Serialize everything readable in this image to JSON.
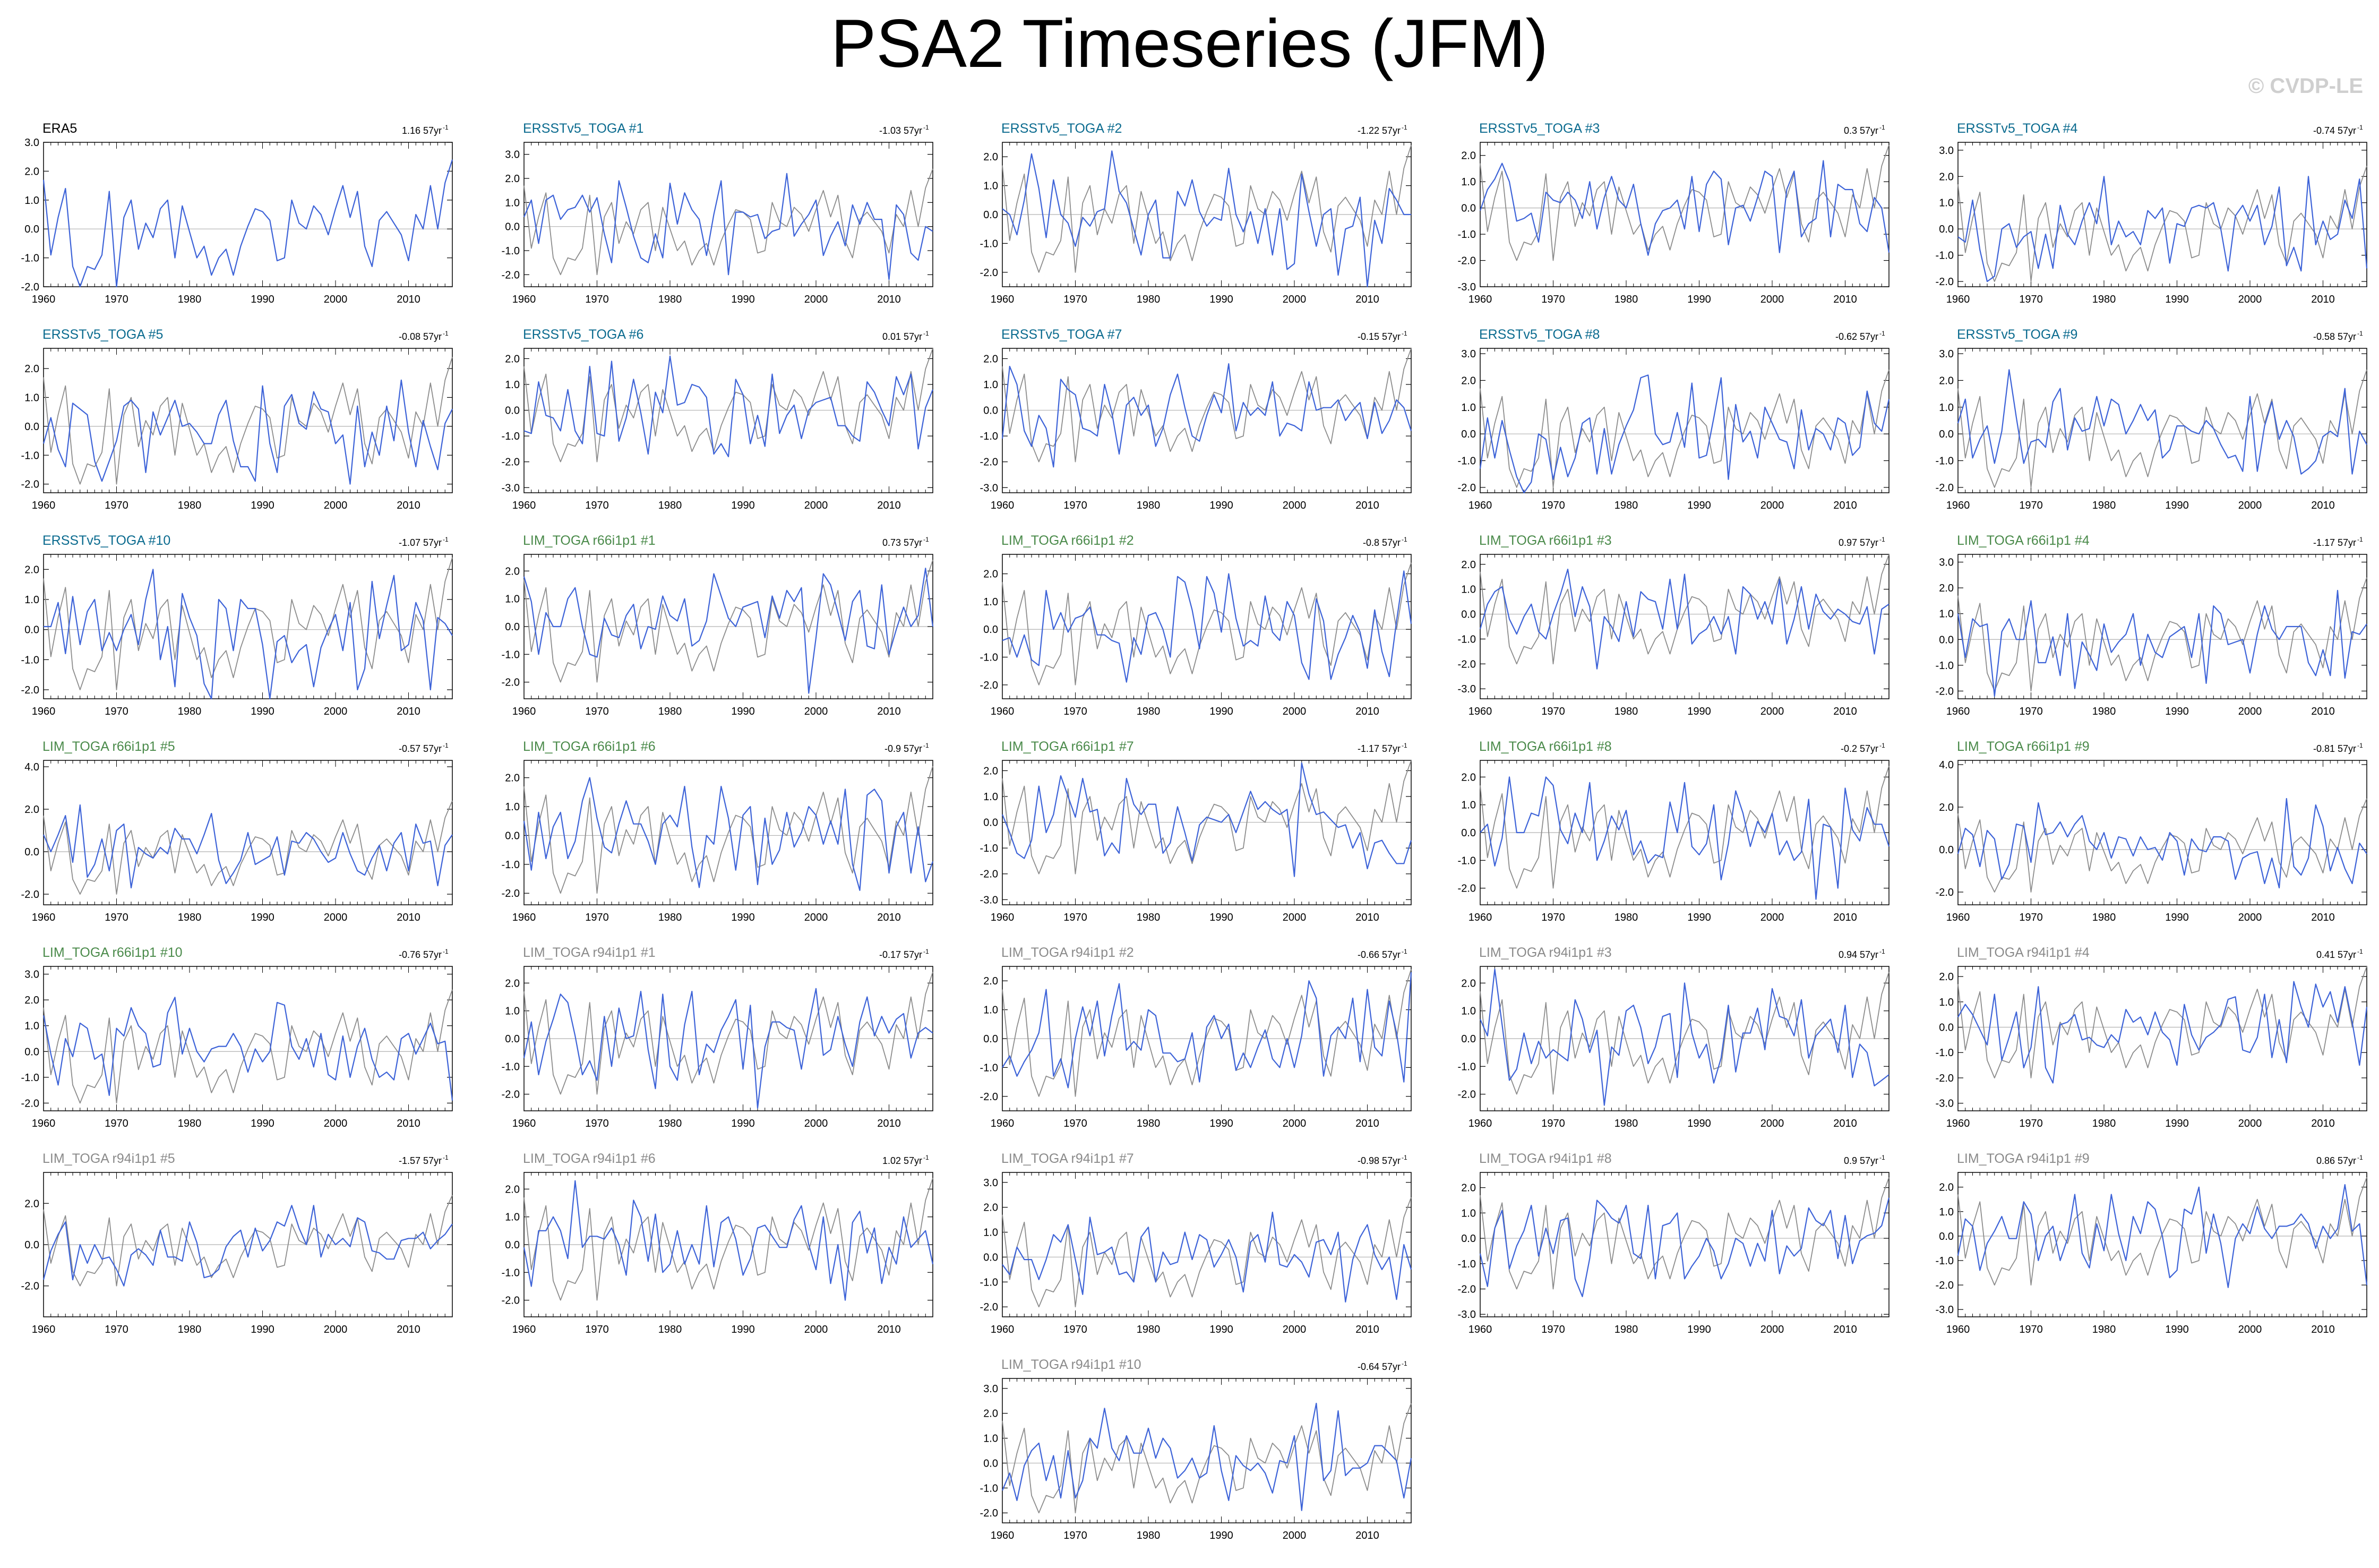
{
  "title": "PSA2 Timeseries (JFM)",
  "watermark": "© CVDP-LE",
  "colors": {
    "member": "#3d63d8",
    "reference": "#8c8c8c",
    "zero_line": "#b0b0b0",
    "title_obs": "#000000",
    "title_ersst": "#0b6b8f",
    "title_lim66": "#4a8a4a",
    "title_lim94": "#8a8a8a"
  },
  "chart_data": {
    "type": "line",
    "x_range": [
      1960,
      2016
    ],
    "x_ticks": [
      "1960",
      "1970",
      "1980",
      "1990",
      "2000",
      "2010"
    ],
    "reference_series_name": "ERA5",
    "reference_values": [
      1.7,
      -0.9,
      0.4,
      1.4,
      -1.3,
      -2.0,
      -1.3,
      -1.4,
      -0.9,
      1.3,
      -2.0,
      0.4,
      1.0,
      -0.7,
      0.2,
      -0.3,
      0.7,
      1.0,
      -1.0,
      0.8,
      -0.1,
      -1.0,
      -0.6,
      -1.6,
      -1.0,
      -0.7,
      -1.6,
      -0.6,
      0.1,
      0.7,
      0.6,
      0.3,
      -1.1,
      -1.0,
      1.0,
      0.2,
      0.0,
      0.8,
      0.5,
      -0.2,
      0.7,
      1.5,
      0.4,
      1.3,
      -0.6,
      -1.3,
      0.3,
      0.6,
      0.2,
      -0.2,
      -1.1,
      0.5,
      0.0,
      1.5,
      0.0,
      1.6,
      2.4
    ],
    "panels": [
      {
        "title": "ERA5",
        "trend": "1.16 57yr",
        "group": "obs",
        "yticks": [
          "3.0",
          "2.0",
          "1.0",
          "0.0",
          "-1.0",
          "-2.0"
        ],
        "ylim": [
          -2,
          3
        ]
      },
      {
        "title": "ERSSTv5_TOGA #1",
        "trend": "-1.03 57yr",
        "group": "ersst",
        "yticks": [
          "3.0",
          "2.0",
          "1.0",
          "0.0",
          "-1.0",
          "-2.0"
        ],
        "ylim": [
          -2.5,
          3.5
        ]
      },
      {
        "title": "ERSSTv5_TOGA #2",
        "trend": "-1.22 57yr",
        "group": "ersst",
        "yticks": [
          "2.0",
          "1.0",
          "0.0",
          "-1.0",
          "-2.0"
        ],
        "ylim": [
          -2.5,
          2.5
        ]
      },
      {
        "title": "ERSSTv5_TOGA #3",
        "trend": "0.3 57yr",
        "group": "ersst",
        "yticks": [
          "2.0",
          "1.0",
          "0.0",
          "-1.0",
          "-2.0",
          "-3.0"
        ],
        "ylim": [
          -3,
          2.5
        ]
      },
      {
        "title": "ERSSTv5_TOGA #4",
        "trend": "-0.74 57yr",
        "group": "ersst",
        "yticks": [
          "3.0",
          "2.0",
          "1.0",
          "0.0",
          "-1.0",
          "-2.0"
        ],
        "ylim": [
          -2.2,
          3.3
        ]
      },
      {
        "title": "ERSSTv5_TOGA #5",
        "trend": "-0.08 57yr",
        "group": "ersst",
        "yticks": [
          "2.0",
          "1.0",
          "0.0",
          "-1.0",
          "-2.0"
        ],
        "ylim": [
          -2.3,
          2.7
        ]
      },
      {
        "title": "ERSSTv5_TOGA #6",
        "trend": "0.01 57yr",
        "group": "ersst",
        "yticks": [
          "2.0",
          "1.0",
          "0.0",
          "-1.0",
          "-2.0",
          "-3.0"
        ],
        "ylim": [
          -3.2,
          2.4
        ]
      },
      {
        "title": "ERSSTv5_TOGA #7",
        "trend": "-0.15 57yr",
        "group": "ersst",
        "yticks": [
          "2.0",
          "1.0",
          "0.0",
          "-1.0",
          "-2.0",
          "-3.0"
        ],
        "ylim": [
          -3.2,
          2.4
        ]
      },
      {
        "title": "ERSSTv5_TOGA #8",
        "trend": "-0.62 57yr",
        "group": "ersst",
        "yticks": [
          "3.0",
          "2.0",
          "1.0",
          "0.0",
          "-1.0",
          "-2.0"
        ],
        "ylim": [
          -2.2,
          3.2
        ]
      },
      {
        "title": "ERSSTv5_TOGA #9",
        "trend": "-0.58 57yr",
        "group": "ersst",
        "yticks": [
          "3.0",
          "2.0",
          "1.0",
          "0.0",
          "-1.0",
          "-2.0"
        ],
        "ylim": [
          -2.2,
          3.2
        ]
      },
      {
        "title": "ERSSTv5_TOGA #10",
        "trend": "-1.07 57yr",
        "group": "ersst",
        "yticks": [
          "2.0",
          "1.0",
          "0.0",
          "-1.0",
          "-2.0"
        ],
        "ylim": [
          -2.3,
          2.5
        ]
      },
      {
        "title": "LIM_TOGA r66i1p1 #1",
        "trend": "0.73 57yr",
        "group": "lim66",
        "yticks": [
          "2.0",
          "1.0",
          "0.0",
          "-1.0",
          "-2.0"
        ],
        "ylim": [
          -2.6,
          2.6
        ]
      },
      {
        "title": "LIM_TOGA r66i1p1 #2",
        "trend": "-0.8 57yr",
        "group": "lim66",
        "yticks": [
          "2.0",
          "1.0",
          "0.0",
          "-1.0",
          "-2.0"
        ],
        "ylim": [
          -2.5,
          2.7
        ]
      },
      {
        "title": "LIM_TOGA r66i1p1 #3",
        "trend": "0.97 57yr",
        "group": "lim66",
        "yticks": [
          "2.0",
          "1.0",
          "0.0",
          "-1.0",
          "-2.0",
          "-3.0"
        ],
        "ylim": [
          -3.4,
          2.4
        ]
      },
      {
        "title": "LIM_TOGA r66i1p1 #4",
        "trend": "-1.17 57yr",
        "group": "lim66",
        "yticks": [
          "3.0",
          "2.0",
          "1.0",
          "0.0",
          "-1.0",
          "-2.0"
        ],
        "ylim": [
          -2.3,
          3.3
        ]
      },
      {
        "title": "LIM_TOGA r66i1p1 #5",
        "trend": "-0.57 57yr",
        "group": "lim66",
        "yticks": [
          "4.0",
          "2.0",
          "0.0",
          "-2.0"
        ],
        "ylim": [
          -2.5,
          4.3
        ]
      },
      {
        "title": "LIM_TOGA r66i1p1 #6",
        "trend": "-0.9 57yr",
        "group": "lim66",
        "yticks": [
          "2.0",
          "1.0",
          "0.0",
          "-1.0",
          "-2.0"
        ],
        "ylim": [
          -2.4,
          2.6
        ]
      },
      {
        "title": "LIM_TOGA r66i1p1 #7",
        "trend": "-1.17 57yr",
        "group": "lim66",
        "yticks": [
          "2.0",
          "1.0",
          "0.0",
          "-1.0",
          "-2.0",
          "-3.0"
        ],
        "ylim": [
          -3.2,
          2.4
        ]
      },
      {
        "title": "LIM_TOGA r66i1p1 #8",
        "trend": "-0.2 57yr",
        "group": "lim66",
        "yticks": [
          "2.0",
          "1.0",
          "0.0",
          "-1.0",
          "-2.0"
        ],
        "ylim": [
          -2.6,
          2.6
        ]
      },
      {
        "title": "LIM_TOGA r66i1p1 #9",
        "trend": "-0.81 57yr",
        "group": "lim66",
        "yticks": [
          "4.0",
          "2.0",
          "0.0",
          "-2.0"
        ],
        "ylim": [
          -2.6,
          4.2
        ]
      },
      {
        "title": "LIM_TOGA r66i1p1 #10",
        "trend": "-0.76 57yr",
        "group": "lim66",
        "yticks": [
          "3.0",
          "2.0",
          "1.0",
          "0.0",
          "-1.0",
          "-2.0"
        ],
        "ylim": [
          -2.3,
          3.3
        ]
      },
      {
        "title": "LIM_TOGA r94i1p1 #1",
        "trend": "-0.17 57yr",
        "group": "lim94",
        "yticks": [
          "2.0",
          "1.0",
          "0.0",
          "-1.0",
          "-2.0"
        ],
        "ylim": [
          -2.6,
          2.6
        ]
      },
      {
        "title": "LIM_TOGA r94i1p1 #2",
        "trend": "-0.66 57yr",
        "group": "lim94",
        "yticks": [
          "2.0",
          "1.0",
          "0.0",
          "-1.0",
          "-2.0"
        ],
        "ylim": [
          -2.5,
          2.5
        ]
      },
      {
        "title": "LIM_TOGA r94i1p1 #3",
        "trend": "0.94 57yr",
        "group": "lim94",
        "yticks": [
          "2.0",
          "1.0",
          "0.0",
          "-1.0",
          "-2.0"
        ],
        "ylim": [
          -2.6,
          2.6
        ]
      },
      {
        "title": "LIM_TOGA r94i1p1 #4",
        "trend": "0.41 57yr",
        "group": "lim94",
        "yticks": [
          "2.0",
          "1.0",
          "0.0",
          "-1.0",
          "-2.0",
          "-3.0"
        ],
        "ylim": [
          -3.3,
          2.4
        ]
      },
      {
        "title": "LIM_TOGA r94i1p1 #5",
        "trend": "-1.57 57yr",
        "group": "lim94",
        "yticks": [
          "2.0",
          "0.0",
          "-2.0"
        ],
        "ylim": [
          -3.5,
          3.5
        ]
      },
      {
        "title": "LIM_TOGA r94i1p1 #6",
        "trend": "1.02 57yr",
        "group": "lim94",
        "yticks": [
          "2.0",
          "1.0",
          "0.0",
          "-1.0",
          "-2.0"
        ],
        "ylim": [
          -2.6,
          2.6
        ]
      },
      {
        "title": "LIM_TOGA r94i1p1 #7",
        "trend": "-0.98 57yr",
        "group": "lim94",
        "yticks": [
          "3.0",
          "2.0",
          "1.0",
          "0.0",
          "-1.0",
          "-2.0"
        ],
        "ylim": [
          -2.4,
          3.4
        ]
      },
      {
        "title": "LIM_TOGA r94i1p1 #8",
        "trend": "0.9 57yr",
        "group": "lim94",
        "yticks": [
          "2.0",
          "1.0",
          "0.0",
          "-1.0",
          "-2.0",
          "-3.0"
        ],
        "ylim": [
          -3.1,
          2.6
        ]
      },
      {
        "title": "LIM_TOGA r94i1p1 #9",
        "trend": "0.86 57yr",
        "group": "lim94",
        "yticks": [
          "2.0",
          "1.0",
          "0.0",
          "-1.0",
          "-2.0",
          "-3.0"
        ],
        "ylim": [
          -3.3,
          2.6
        ]
      },
      {
        "title": "LIM_TOGA r94i1p1 #10",
        "trend": "-0.64 57yr",
        "group": "lim94",
        "yticks": [
          "3.0",
          "2.0",
          "1.0",
          "0.0",
          "-1.0",
          "-2.0"
        ],
        "ylim": [
          -2.4,
          3.4
        ]
      }
    ]
  }
}
